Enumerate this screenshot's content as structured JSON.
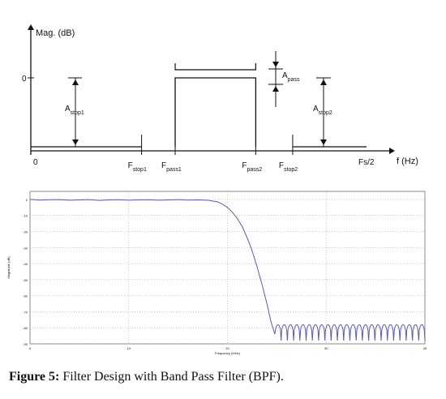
{
  "chart_data": [
    {
      "type": "line",
      "title": "",
      "ylabel": "Mag. (dB)",
      "xlabel": "f (Hz)",
      "y_ticks": [
        {
          "label": "0",
          "value": 0
        }
      ],
      "x_tick_labels": [
        {
          "label": "0",
          "x": 0
        },
        {
          "main": "F",
          "sub": "stop1",
          "x": 0.33
        },
        {
          "main": "F",
          "sub": "pass1",
          "x": 0.43
        },
        {
          "main": "F",
          "sub": "pass2",
          "x": 0.67
        },
        {
          "main": "F",
          "sub": "stop2",
          "x": 0.78
        },
        {
          "label": "Fs/2",
          "x": 1.0
        }
      ],
      "annotations": [
        {
          "main": "A",
          "sub": "stop1"
        },
        {
          "main": "A",
          "sub": "pass"
        },
        {
          "main": "A",
          "sub": "stop2"
        }
      ],
      "series": [
        {
          "values": [
            [
              0,
              -80
            ],
            [
              0.33,
              -80
            ]
          ]
        },
        {
          "values": [
            [
              0.43,
              -80
            ],
            [
              0.43,
              0
            ],
            [
              0.67,
              0
            ],
            [
              0.67,
              -80
            ]
          ]
        },
        {
          "values": [
            [
              0.78,
              -80
            ],
            [
              1.0,
              -80
            ]
          ]
        }
      ]
    },
    {
      "type": "line",
      "xlabel": "Frequency (MHz)",
      "ylabel": "Magnitude (dB)",
      "xlim": [
        0,
        40
      ],
      "ylim": [
        -90,
        5
      ],
      "x_ticks": [
        0,
        10,
        20,
        30,
        40
      ],
      "y_ticks": [
        0,
        -10,
        -20,
        -30,
        -40,
        -50,
        -60,
        -70,
        -80,
        -90
      ],
      "grid": true,
      "series": [
        {
          "color": "#5a5ab4",
          "x": [
            0,
            1,
            2,
            3,
            4,
            5,
            6,
            7,
            8,
            9,
            10,
            11,
            12,
            13,
            14,
            15,
            16,
            17,
            18,
            19,
            19.5,
            20,
            20.5,
            21,
            21.5,
            22,
            22.5,
            23,
            23.5,
            24,
            24.4,
            24.8
          ],
          "y": [
            0,
            -0.4,
            -0.2,
            -0.1,
            -0.5,
            -0.3,
            -0.1,
            -0.6,
            -0.3,
            -0.2,
            -0.5,
            -0.3,
            -0.2,
            -0.5,
            -0.3,
            -0.1,
            -0.4,
            -0.3,
            -0.5,
            -1.5,
            -3,
            -5,
            -8,
            -12,
            -17,
            -24,
            -32,
            -42,
            -53,
            -65,
            -76,
            -84
          ]
        }
      ],
      "stopband": {
        "start": 24.8,
        "end": 40,
        "lobes": 24,
        "floor": -88,
        "peak": -78
      }
    }
  ],
  "caption": {
    "label": "Figure 5:",
    "text": " Filter Design with Band Pass Filter (BPF)."
  }
}
